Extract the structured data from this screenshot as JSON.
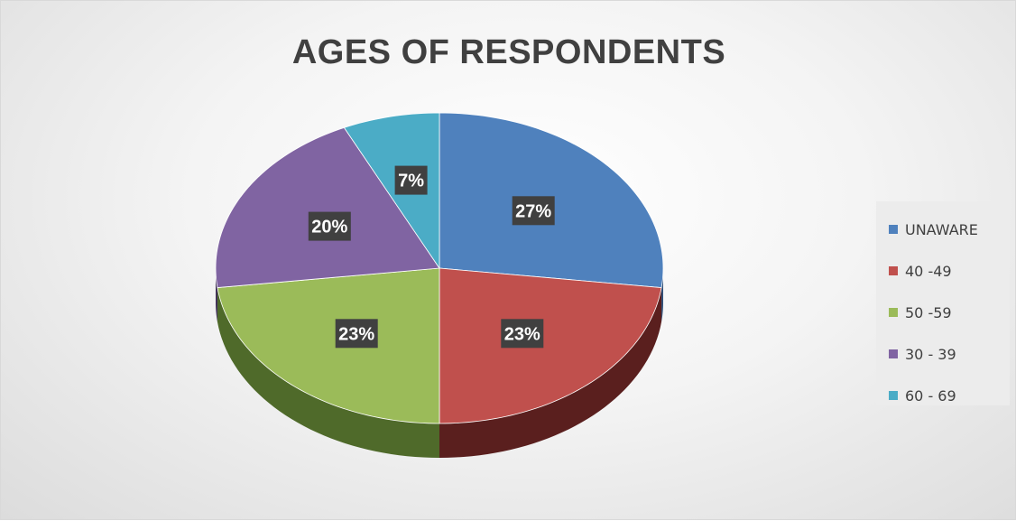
{
  "chart_data": {
    "type": "pie",
    "title": "AGES OF RESPONDENTS",
    "categories": [
      "UNAWARE",
      "40 -49",
      "50 -59",
      "30 - 39",
      "60 - 69"
    ],
    "values": [
      27,
      23,
      23,
      20,
      7
    ],
    "labels": [
      "27%",
      "23%",
      "23%",
      "20%",
      "7%"
    ],
    "unit": "%",
    "colors": [
      "#4f81bd",
      "#c0504d",
      "#9bbb59",
      "#8064a2",
      "#4bacc6"
    ],
    "side_colors": [
      "#2f4f78",
      "#5a1f1e",
      "#4f6a2a",
      "#3f3055",
      "#27697a"
    ],
    "legend_position": "right",
    "style": "3d-tilted"
  }
}
